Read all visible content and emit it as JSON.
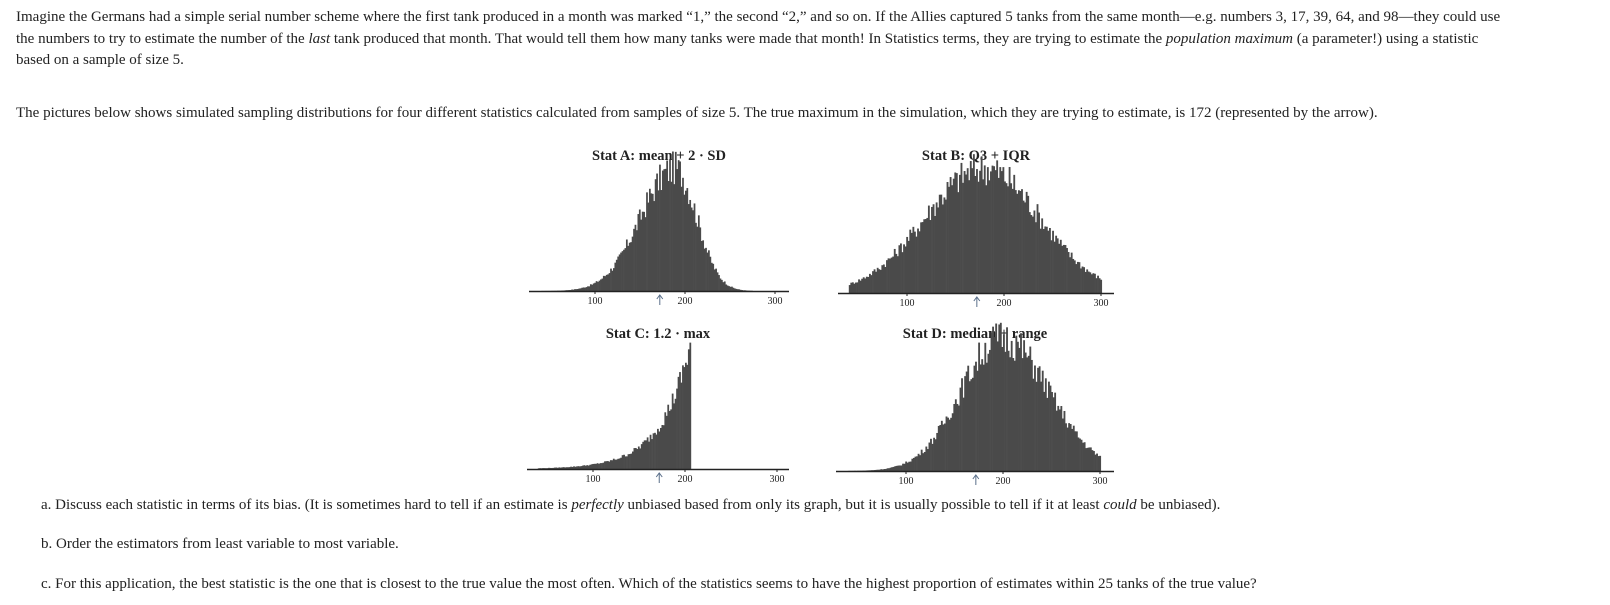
{
  "intro": {
    "line1_a": "Imagine the Germans had a simple serial number scheme where the first tank produced in a month was marked “1,” the second “2,” and so on. If the Allies captured 5 tanks from the same month—e.g. numbers 3, 17, 39, 64, and 98—they could use",
    "line2_a": "the numbers to try to estimate the number of the ",
    "line2_em": "last",
    "line2_b": " tank produced that month. That would tell them how many tanks were made that month! In Statistics terms, they are trying to estimate the ",
    "line2_em2": "population maximum",
    "line2_c": " (a parameter!) using a statistic",
    "line3": "based on a sample of size 5."
  },
  "description": "The pictures below shows simulated sampling distributions for four different statistics calculated from samples of size 5. The true maximum in the simulation, which they are trying to estimate, is 172 (represented by the arrow).",
  "questions": {
    "a_pre": "a. Discuss each statistic in terms of its bias. (It is sometimes hard to tell if an estimate is ",
    "a_em1": "perfectly",
    "a_mid": " unbiased based from only its graph, but it is usually possible to tell if it at least ",
    "a_em2": "could",
    "a_post": " be unbiased).",
    "b": "b. Order the estimators from least variable to most variable.",
    "c": "c. For this application, the best statistic is the one that is closest to the true value the most often. Which of the statistics seems to have the highest proportion of estimates within 25 tanks of the true value?"
  },
  "colors": {
    "bar": "#4a4a4a",
    "axis": "#222222",
    "arrow": "#5a6f8a"
  },
  "chart_data": [
    {
      "id": "A",
      "type": "bar",
      "title": "Stat A: mean + 2 · SD",
      "x_ticks": [
        100,
        200,
        300
      ],
      "xlim": [
        30,
        315
      ],
      "true_value": 172,
      "grid": false,
      "shape": {
        "kind": "skew-left",
        "peak": 188,
        "left_sd": 38,
        "right_sd": 24,
        "min": 40,
        "max": 275
      },
      "approx_density_profile": {
        "x": [
          50,
          100,
          150,
          175,
          188,
          200,
          225,
          250,
          270
        ],
        "relative_height": [
          0.02,
          0.12,
          0.35,
          0.65,
          1.0,
          0.85,
          0.5,
          0.05,
          0.01
        ]
      }
    },
    {
      "id": "B",
      "type": "bar",
      "title": "Stat B: Q3 + IQR",
      "x_ticks": [
        100,
        200,
        300
      ],
      "xlim": [
        30,
        315
      ],
      "true_value": 172,
      "grid": false,
      "shape": {
        "kind": "symmetric",
        "peak": 178,
        "left_sd": 60,
        "right_sd": 58,
        "min": 40,
        "max": 300
      },
      "approx_density_profile": {
        "x": [
          40,
          100,
          150,
          178,
          200,
          250,
          300
        ],
        "relative_height": [
          0.1,
          0.4,
          0.8,
          1.0,
          0.85,
          0.35,
          0.07
        ]
      }
    },
    {
      "id": "C",
      "type": "bar",
      "title": "Stat C: 1.2 · max",
      "x_ticks": [
        100,
        200,
        300
      ],
      "xlim": [
        30,
        315
      ],
      "true_value": 172,
      "grid": false,
      "shape": {
        "kind": "truncated-exponential",
        "peak": 206,
        "min": 40,
        "max": 206
      },
      "approx_density_profile": {
        "x": [
          50,
          100,
          150,
          175,
          200,
          206
        ],
        "relative_height": [
          0.01,
          0.06,
          0.3,
          0.5,
          0.9,
          1.0
        ]
      }
    },
    {
      "id": "D",
      "type": "bar",
      "title": "Stat D: median + range",
      "x_ticks": [
        100,
        200,
        300
      ],
      "xlim": [
        30,
        315
      ],
      "true_value": 172,
      "grid": false,
      "shape": {
        "kind": "skew-left",
        "peak": 198,
        "left_sd": 42,
        "right_sd": 48,
        "min": 40,
        "max": 300
      },
      "approx_density_profile": {
        "x": [
          50,
          100,
          150,
          175,
          198,
          225,
          250,
          300
        ],
        "relative_height": [
          0.02,
          0.08,
          0.4,
          0.7,
          1.0,
          0.75,
          0.45,
          0.08
        ]
      }
    }
  ]
}
